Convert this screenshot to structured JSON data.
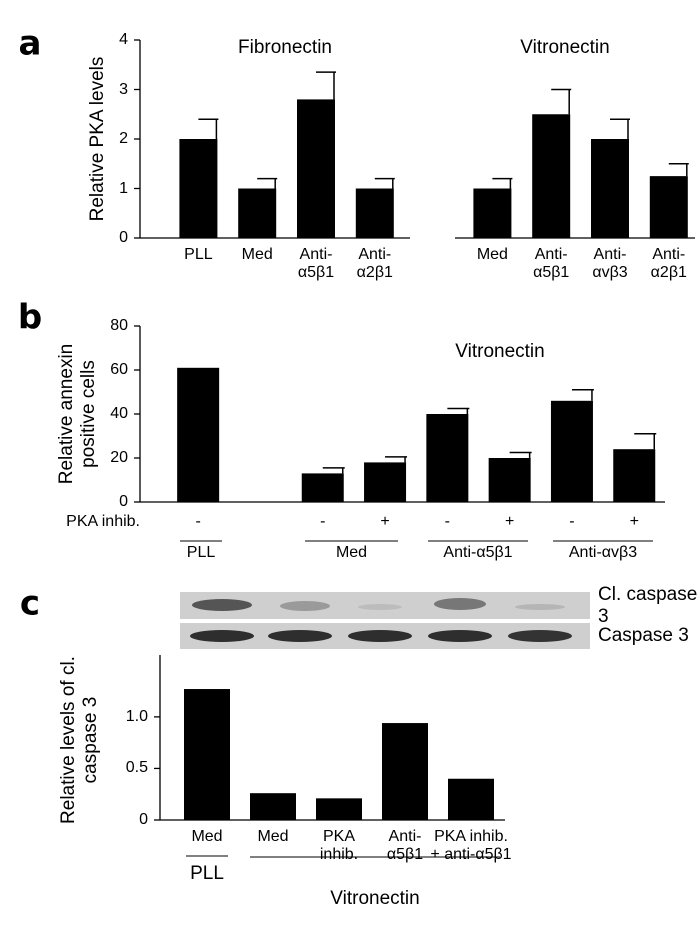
{
  "chart_data": [
    {
      "type": "bar",
      "label": "a",
      "y_label": "Relative PKA levels",
      "categories": [
        "PLL",
        "Med",
        "Anti-α5β1",
        "Anti-α2β1",
        null,
        "Med",
        "Anti-α5β1",
        "Anti-αvβ3",
        "Anti-α2β1"
      ],
      "values": [
        2,
        1,
        2.8,
        1,
        null,
        1,
        2.5,
        2,
        1.25
      ],
      "errors": [
        0.4,
        0.2,
        0.55,
        0.2,
        null,
        0.2,
        0.5,
        0.4,
        0.25
      ],
      "color": "#000000",
      "ylim": [
        0,
        4
      ],
      "yticks": [
        0,
        1,
        2,
        3,
        4
      ],
      "annotations": [
        "Fibronectin",
        "Vitronectin"
      ]
    },
    {
      "type": "bar",
      "label": "b",
      "y_label": "Relative annexin positive cells",
      "row_label": "PKA inhib.",
      "categories": [
        "-",
        null,
        "-",
        "+",
        "-",
        "+",
        "-",
        "+"
      ],
      "values": [
        61,
        null,
        13,
        18,
        40,
        20,
        46,
        24
      ],
      "errors": [
        null,
        null,
        2.5,
        2.5,
        2.5,
        2.5,
        5,
        7
      ],
      "color": "#000000",
      "ylim": [
        0,
        80
      ],
      "yticks": [
        0,
        20,
        40,
        60,
        80
      ],
      "annotations": [
        "Vitronectin"
      ],
      "groups": [
        "PLL",
        "Med",
        "Anti-α5β1",
        "Anti-αvβ3"
      ]
    },
    {
      "type": "bar",
      "label": "c",
      "y_label": "Relative levels of cl. caspase 3",
      "blot_labels": [
        "Cl. caspase 3",
        "Caspase 3"
      ],
      "categories": [
        "Med",
        "Med",
        "PKA inhib.",
        "Anti-α5β1",
        "PKA inhib. + anti-α5β1"
      ],
      "values": [
        1.27,
        0.26,
        0.21,
        0.94,
        0.4
      ],
      "color": "#000000",
      "ylim": [
        0,
        1.6
      ],
      "yticks": [
        0,
        0.5,
        {
          "value": 1,
          "label": "1.0"
        }
      ],
      "groups": [
        "PLL",
        "Vitronectin"
      ]
    }
  ]
}
